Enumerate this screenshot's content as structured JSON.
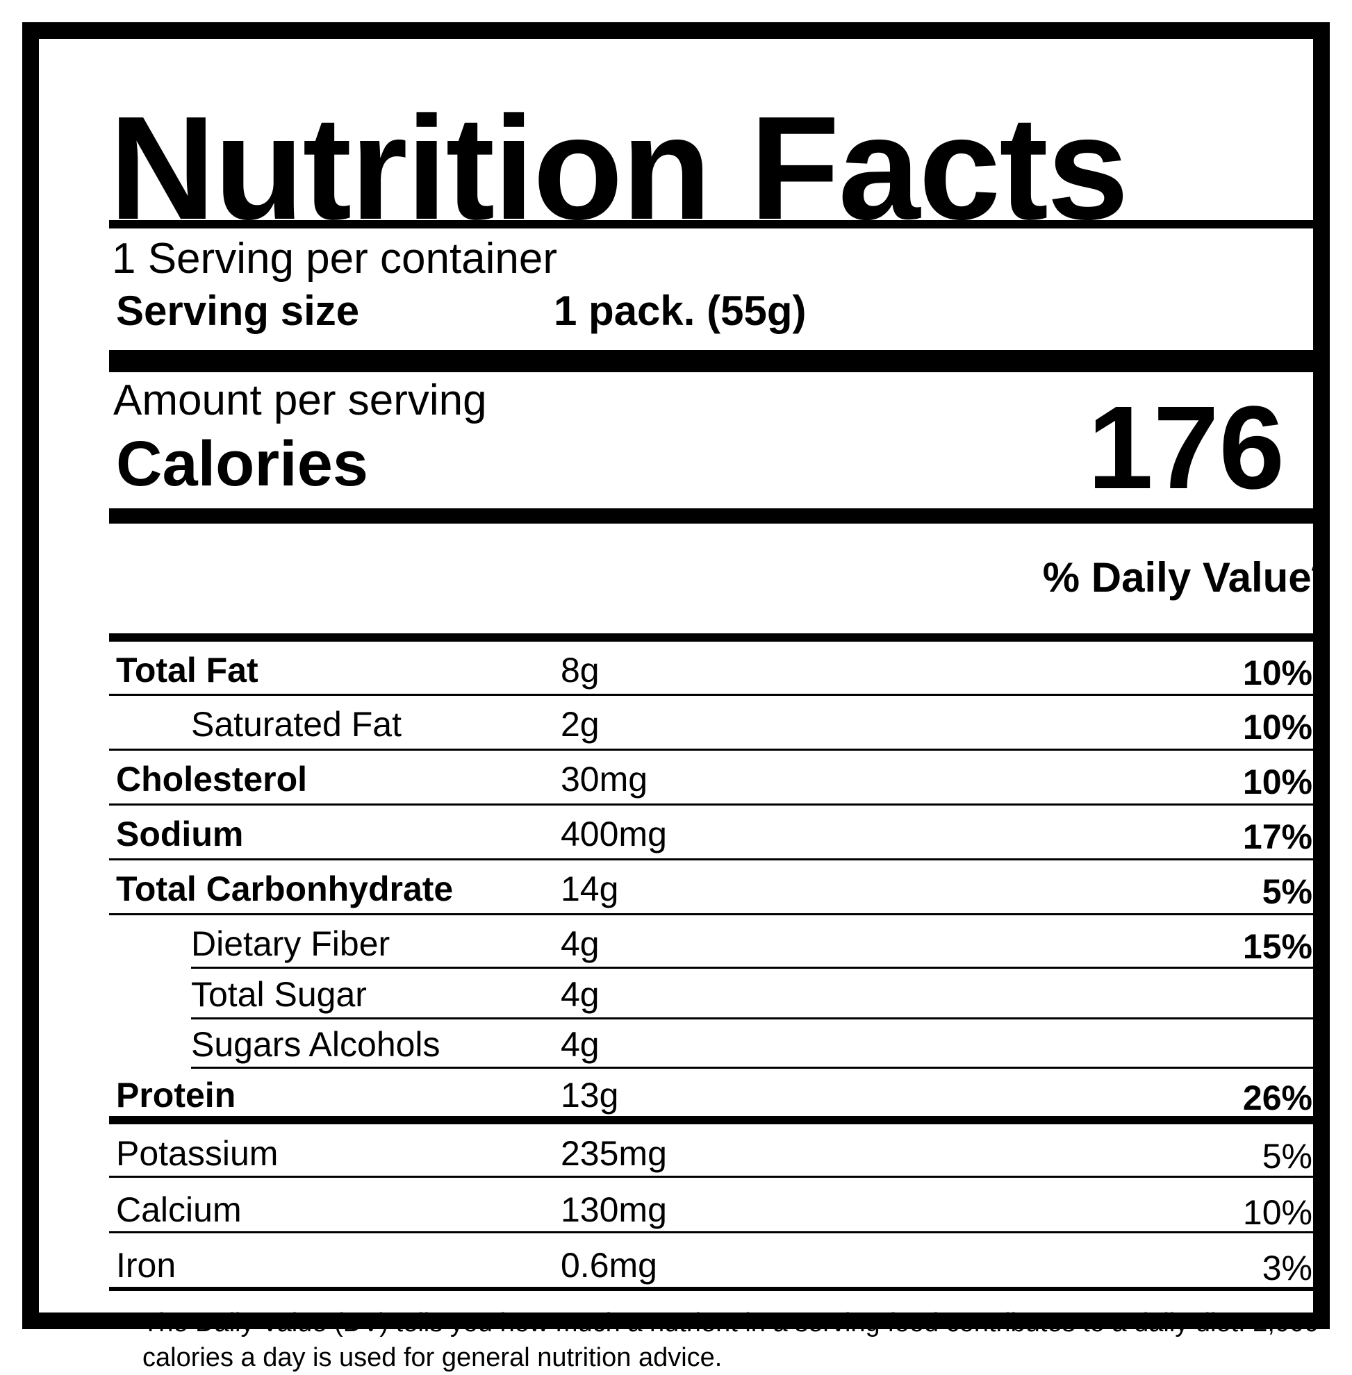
{
  "title": "Nutrition Facts",
  "serving": {
    "per_container": "1 Serving per container",
    "size_label": "Serving size",
    "size_value": "1 pack. (55g)"
  },
  "calories": {
    "amount_per_serving": "Amount per serving",
    "label": "Calories",
    "value": "176"
  },
  "daily_value_header": "% Daily Value*",
  "nutrients": [
    {
      "name": "Total Fat",
      "amount": "8g",
      "dv": "10%"
    },
    {
      "name": "Saturated Fat",
      "amount": "2g",
      "dv": "10%"
    },
    {
      "name": "Cholesterol",
      "amount": "30mg",
      "dv": "10%"
    },
    {
      "name": "Sodium",
      "amount": "400mg",
      "dv": "17%"
    },
    {
      "name": "Total Carbonhydrate",
      "amount": "14g",
      "dv": "5%"
    },
    {
      "name": "Dietary Fiber",
      "amount": "4g",
      "dv": "15%"
    },
    {
      "name": "Total Sugar",
      "amount": "4g",
      "dv": ""
    },
    {
      "name": "Sugars Alcohols",
      "amount": "4g",
      "dv": ""
    },
    {
      "name": "Protein",
      "amount": "13g",
      "dv": "26%"
    }
  ],
  "minerals": [
    {
      "name": "Potassium",
      "amount": "235mg",
      "dv": "5%"
    },
    {
      "name": "Calcium",
      "amount": "130mg",
      "dv": "10%"
    },
    {
      "name": "Iron",
      "amount": "0.6mg",
      "dv": "3%"
    }
  ],
  "footnote": {
    "marker": "*",
    "text": "The  Daily Value (DV) tells you how much a nutrient in a serving food contributes to a daily diet. 2,000 calories a day is used for general nutrition advice."
  }
}
